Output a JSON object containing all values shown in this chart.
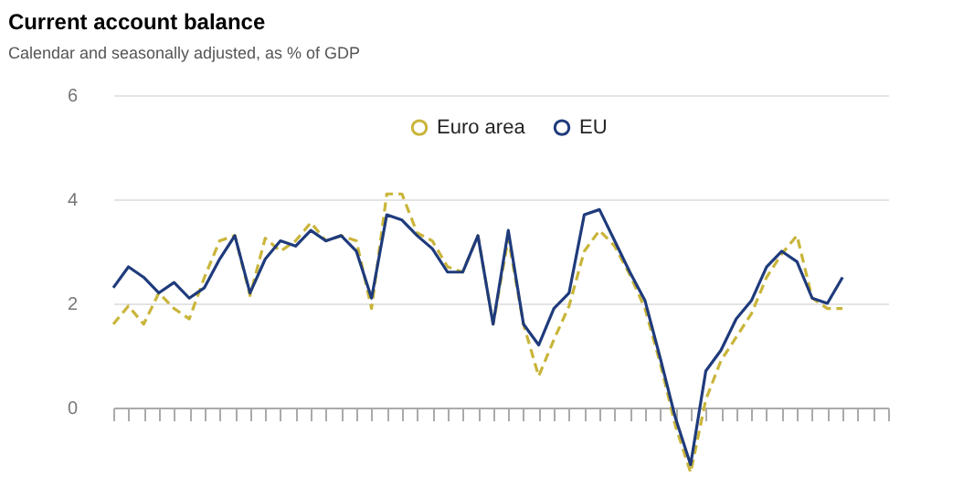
{
  "chart_data": {
    "type": "line",
    "title": "Current account balance",
    "subtitle": "Calendar and seasonally adjusted, as % of GDP",
    "categories": [
      null,
      null,
      null,
      null,
      null,
      null,
      null,
      null,
      null,
      null,
      null,
      null,
      null,
      null,
      null,
      null,
      null,
      null,
      null,
      null,
      null,
      null,
      null,
      null,
      null,
      null,
      null,
      null,
      null,
      null,
      null,
      null,
      null,
      null,
      null,
      null,
      null,
      null,
      null,
      null,
      null,
      null,
      null,
      null,
      null,
      null,
      null,
      null,
      null,
      null,
      null,
      null
    ],
    "series": [
      {
        "name": "Euro area",
        "color": "#c9b53a",
        "line_style": "dashed",
        "values": [
          1.6,
          1.95,
          1.6,
          2.2,
          1.9,
          1.7,
          2.5,
          3.2,
          3.3,
          2.15,
          3.25,
          3.0,
          3.2,
          3.55,
          3.2,
          3.3,
          3.2,
          1.9,
          4.1,
          4.1,
          3.35,
          3.2,
          2.7,
          2.6,
          3.3,
          1.6,
          3.25,
          1.6,
          0.6,
          1.3,
          1.95,
          3.0,
          3.4,
          3.1,
          2.55,
          1.9,
          0.85,
          -0.35,
          -1.25,
          0.15,
          0.9,
          1.35,
          1.8,
          2.5,
          2.95,
          3.3,
          2.1,
          1.9,
          1.9,
          null,
          null,
          null
        ]
      },
      {
        "name": "EU",
        "color": "#1f3b7c",
        "line_style": "solid",
        "values": [
          2.3,
          2.7,
          2.5,
          2.2,
          2.4,
          2.1,
          2.3,
          2.85,
          3.3,
          2.2,
          2.85,
          3.2,
          3.1,
          3.4,
          3.2,
          3.3,
          3.0,
          2.1,
          3.7,
          3.6,
          3.3,
          3.05,
          2.6,
          2.6,
          3.3,
          1.6,
          3.4,
          1.6,
          1.2,
          1.9,
          2.2,
          3.7,
          3.8,
          3.2,
          2.6,
          2.05,
          0.95,
          -0.2,
          -1.1,
          0.7,
          1.1,
          1.7,
          2.05,
          2.7,
          3.0,
          2.8,
          2.1,
          2.0,
          2.5,
          null,
          null,
          null
        ]
      }
    ],
    "ylim": [
      -1.3,
      6
    ],
    "yticks": [
      0,
      2,
      4,
      6
    ],
    "grid": "y",
    "legend": "top",
    "tick_labels": "y"
  }
}
